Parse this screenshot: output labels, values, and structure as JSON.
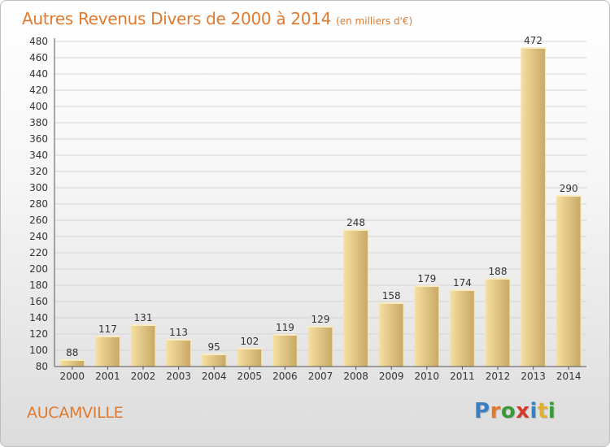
{
  "chart_data": {
    "type": "bar",
    "title": "Autres Revenus Divers de 2000 à 2014",
    "subtitle": "(en milliers d'€)",
    "categories": [
      "2000",
      "2001",
      "2002",
      "2003",
      "2004",
      "2005",
      "2006",
      "2007",
      "2008",
      "2009",
      "2010",
      "2011",
      "2012",
      "2013",
      "2014"
    ],
    "values": [
      88,
      117,
      131,
      113,
      95,
      102,
      119,
      129,
      248,
      158,
      179,
      174,
      188,
      472,
      290
    ],
    "ylim": [
      80,
      480
    ],
    "yticks": [
      80,
      100,
      120,
      140,
      160,
      180,
      200,
      220,
      240,
      260,
      280,
      300,
      320,
      340,
      360,
      380,
      400,
      420,
      440,
      460,
      480
    ],
    "grid": true,
    "bar_color": "#e8cf8a"
  },
  "location": "AUCAMVILLE",
  "logo": {
    "text": "Proxiti",
    "letters": [
      {
        "ch": "P",
        "color": "#3a7fc1"
      },
      {
        "ch": "r",
        "color": "#e07a2f"
      },
      {
        "ch": "o",
        "color": "#3a9a3a"
      },
      {
        "ch": "x",
        "color": "#d33a2c"
      },
      {
        "ch": "i",
        "color": "#3a7fc1"
      },
      {
        "ch": "t",
        "color": "#e0b12f"
      },
      {
        "ch": "i",
        "color": "#3a9a3a"
      }
    ]
  }
}
